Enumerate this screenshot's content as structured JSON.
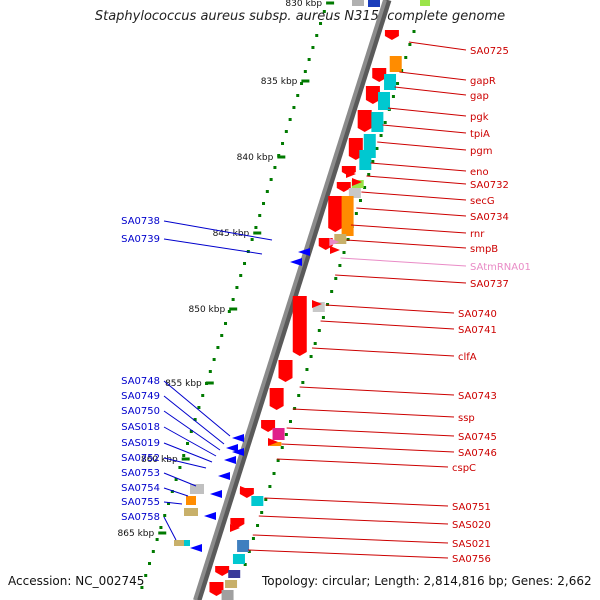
{
  "title": "Staphylococcus aureus subsp. aureus N315, complete genome",
  "footer": {
    "accession": "Accession: NC_002745",
    "stats": "Topology: circular; Length: 2,814,816 bp; Genes: 2,662"
  },
  "colors": {
    "backbone": "#8c8c8c",
    "forward_gene": "#ff0000",
    "reverse_gene": "#0000ff",
    "tick": "#007a00",
    "right_label": "#cc0000",
    "left_label": "#0000cc",
    "rna_label": "#e98bc6"
  },
  "ruler": [
    {
      "label": "830 kbp"
    },
    {
      "label": "835 kbp"
    },
    {
      "label": "840 kbp"
    },
    {
      "label": "845 kbp"
    },
    {
      "label": "850 kbp"
    },
    {
      "label": "855 kbp"
    },
    {
      "label": "860 kbp"
    },
    {
      "label": "865 kbp"
    }
  ],
  "right_genes": [
    {
      "name": "SA0725"
    },
    {
      "name": "gapR"
    },
    {
      "name": "gap"
    },
    {
      "name": "pgk"
    },
    {
      "name": "tpiA"
    },
    {
      "name": "pgm"
    },
    {
      "name": "eno"
    },
    {
      "name": "SA0732"
    },
    {
      "name": "secG"
    },
    {
      "name": "SA0734"
    },
    {
      "name": "rnr"
    },
    {
      "name": "smpB"
    },
    {
      "name": "SAtmRNA01"
    },
    {
      "name": "SA0737"
    },
    {
      "name": "SA0740"
    },
    {
      "name": "SA0741"
    },
    {
      "name": "clfA"
    },
    {
      "name": "SA0743"
    },
    {
      "name": "ssp"
    },
    {
      "name": "SA0745"
    },
    {
      "name": "SA0746"
    },
    {
      "name": "cspC"
    },
    {
      "name": "SA0751"
    },
    {
      "name": "SAS020"
    },
    {
      "name": "SAS021"
    },
    {
      "name": "SA0756"
    }
  ],
  "left_genes": [
    {
      "name": "SA0738"
    },
    {
      "name": "SA0739"
    },
    {
      "name": "SA0748"
    },
    {
      "name": "SA0749"
    },
    {
      "name": "SA0750"
    },
    {
      "name": "SAS018"
    },
    {
      "name": "SAS019"
    },
    {
      "name": "SA0752"
    },
    {
      "name": "SA0753"
    },
    {
      "name": "SA0754"
    },
    {
      "name": "SA0755"
    },
    {
      "name": "SA0758"
    }
  ]
}
